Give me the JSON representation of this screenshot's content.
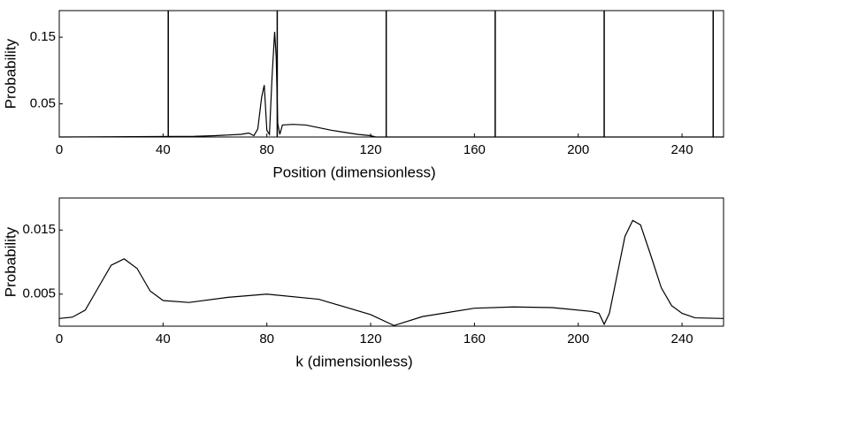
{
  "chart_data": [
    {
      "type": "line",
      "color": "#000000",
      "x_label": "Position (dimensionless)",
      "y_label": "Probability",
      "xlim": [
        0,
        256
      ],
      "ylim": [
        0,
        0.19
      ],
      "xticks": [
        0,
        40,
        80,
        120,
        160,
        200,
        240
      ],
      "yticks": [
        0.05,
        0.15
      ],
      "vlines": [
        42,
        84,
        126,
        168,
        210,
        252
      ],
      "x": [
        0,
        52,
        60,
        70,
        73,
        75,
        76.5,
        78,
        79,
        80,
        81,
        82,
        83,
        83.6,
        84.2,
        85,
        86,
        90,
        95,
        100,
        105,
        110,
        115,
        120,
        122,
        256
      ],
      "values": [
        0,
        0.001,
        0.002,
        0.004,
        0.006,
        0.002,
        0.012,
        0.06,
        0.078,
        0.01,
        0.004,
        0.09,
        0.158,
        0.12,
        0.02,
        0.004,
        0.018,
        0.019,
        0.018,
        0.014,
        0.01,
        0.007,
        0.004,
        0.002,
        0,
        0
      ]
    },
    {
      "type": "line",
      "color": "#000000",
      "x_label": "k (dimensionless)",
      "y_label": "Probability",
      "xlim": [
        0,
        256
      ],
      "ylim": [
        0,
        0.02
      ],
      "xticks": [
        0,
        40,
        80,
        120,
        160,
        200,
        240
      ],
      "yticks": [
        0.005,
        0.015
      ],
      "x": [
        0,
        5,
        10,
        15,
        20,
        25,
        30,
        35,
        40,
        50,
        65,
        80,
        100,
        120,
        129,
        140,
        160,
        175,
        190,
        205,
        208,
        210,
        212,
        215,
        218,
        221,
        224,
        228,
        232,
        236,
        240,
        245,
        256
      ],
      "values": [
        0.0012,
        0.0014,
        0.0025,
        0.006,
        0.0095,
        0.0105,
        0.009,
        0.0055,
        0.004,
        0.0037,
        0.0045,
        0.005,
        0.0042,
        0.0018,
        0.0001,
        0.0015,
        0.0028,
        0.003,
        0.0029,
        0.0023,
        0.002,
        0.0003,
        0.002,
        0.008,
        0.014,
        0.0165,
        0.0158,
        0.011,
        0.006,
        0.0032,
        0.002,
        0.0013,
        0.0012
      ]
    }
  ]
}
